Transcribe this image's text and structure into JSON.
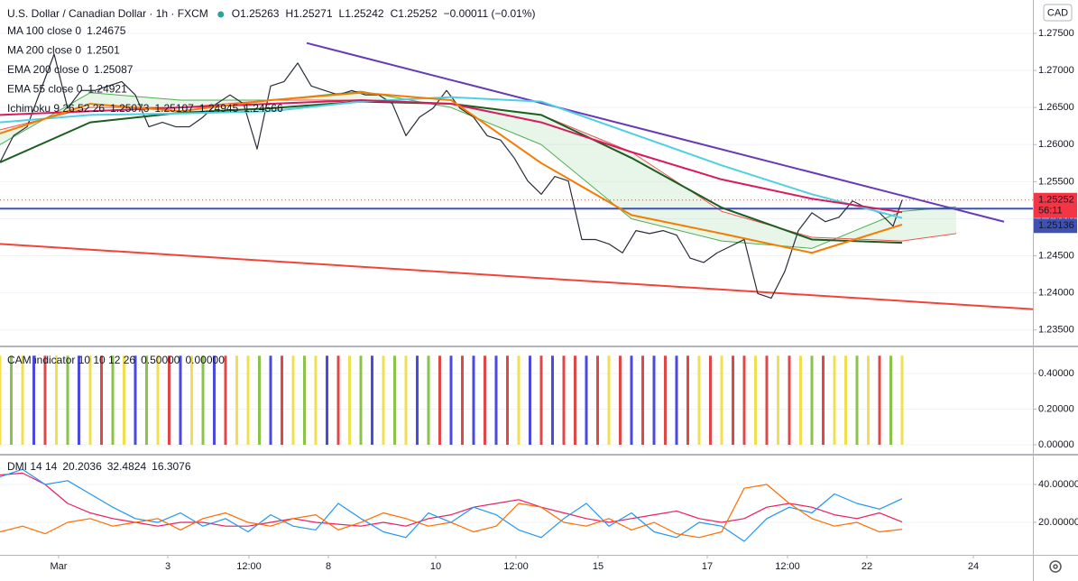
{
  "chart_data": [
    {
      "type": "line",
      "title": "U.S. Dollar / Canadian Dollar · 1h · FXCM",
      "quote": [
        "O1.25263",
        "H1.25271",
        "L1.25242",
        "C1.25252",
        "−0.00011 (−0.01%)"
      ],
      "currency": "CAD",
      "countdown": "56:11",
      "last_price": 1.25252,
      "hline": 1.25136,
      "xlim": [
        0,
        458
      ],
      "ylim": [
        1.2329,
        1.2795
      ],
      "yticks": [
        {
          "value": 1.235,
          "label": "1.23500"
        },
        {
          "value": 1.24,
          "label": "1.24000"
        },
        {
          "value": 1.245,
          "label": "1.24500"
        },
        {
          "value": 1.25,
          "label": "1.25000"
        },
        {
          "value": 1.255,
          "label": "1.25500"
        },
        {
          "value": 1.26,
          "label": "1.26000"
        },
        {
          "value": 1.265,
          "label": "1.26500"
        },
        {
          "value": 1.27,
          "label": "1.27000"
        },
        {
          "value": 1.275,
          "label": "1.27500"
        }
      ],
      "grid": true,
      "x": [
        0,
        6,
        12,
        18,
        24,
        30,
        36,
        42,
        48,
        54,
        60,
        66,
        72,
        78,
        84,
        90,
        96,
        102,
        108,
        114,
        120,
        126,
        132,
        138,
        144,
        150,
        156,
        162,
        168,
        174,
        180,
        186,
        192,
        198,
        204,
        210,
        216,
        222,
        228,
        234,
        240,
        246,
        252,
        258,
        264,
        270,
        276,
        282,
        288,
        294,
        300,
        306,
        312,
        318,
        324,
        330,
        336,
        342,
        348,
        354,
        360,
        366,
        372,
        378,
        384,
        390,
        396,
        400
      ],
      "ichimoku": {
        "name": "Ichimoku 9 26 52 26",
        "legend_values": [
          1.25073,
          1.25107,
          1.24945,
          1.24566
        ],
        "x": [
          0,
          40,
          80,
          120,
          160,
          200,
          240,
          280,
          320,
          360,
          400,
          424
        ],
        "span_a": {
          "color": "#4caf50",
          "values": [
            1.26,
            1.267,
            1.266,
            1.266,
            1.2672,
            1.265,
            1.26,
            1.25,
            1.247,
            1.246,
            1.251,
            1.2516
          ]
        },
        "span_b": {
          "color": "#ef5350",
          "values": [
            1.262,
            1.265,
            1.265,
            1.266,
            1.266,
            1.2655,
            1.264,
            1.259,
            1.251,
            1.2475,
            1.247,
            1.248
          ]
        }
      },
      "trendlines": [
        {
          "color": "#673ab7",
          "x": [
            136,
            445.2
          ],
          "values": [
            1.2737,
            1.2496
          ]
        },
        {
          "color": "#f44336",
          "x": [
            0,
            458
          ],
          "values": [
            1.2466,
            1.2378
          ]
        }
      ],
      "series": [
        {
          "color": "#2a2e39",
          "values": [
            1.2576,
            1.2612,
            1.2624,
            1.2673,
            1.2722,
            1.2649,
            1.2673,
            1.2673,
            1.2679,
            1.2685,
            1.2667,
            1.2624,
            1.263,
            1.2624,
            1.2624,
            1.2637,
            1.2655,
            1.2667,
            1.2655,
            1.2594,
            1.2679,
            1.2685,
            1.271,
            1.2679,
            1.2673,
            1.2667,
            1.2673,
            1.2667,
            1.2667,
            1.2655,
            1.2612,
            1.2637,
            1.2649,
            1.2673,
            1.2649,
            1.2637,
            1.2612,
            1.2606,
            1.2582,
            1.2551,
            1.2533,
            1.2557,
            1.2551,
            1.2472,
            1.2472,
            1.2466,
            1.2454,
            1.2484,
            1.248,
            1.2484,
            1.2478,
            1.2447,
            1.2441,
            1.2454,
            1.2463,
            1.2472,
            1.2399,
            1.2393,
            1.2429,
            1.2484,
            1.2508,
            1.2496,
            1.2502,
            1.2524,
            1.2515,
            1.2508,
            1.249,
            1.25252
          ]
        },
        {
          "name": "MA 100 close 0",
          "color": "#1b5e20",
          "x": [
            0,
            40,
            80,
            120,
            160,
            200,
            240,
            280,
            320,
            360,
            400
          ],
          "values": [
            1.2576,
            1.263,
            1.2643,
            1.2649,
            1.2658,
            1.2655,
            1.264,
            1.2582,
            1.2515,
            1.2472,
            1.24675
          ]
        },
        {
          "name": "MA 200 close 0",
          "color": "#4dd0e1",
          "x": [
            0,
            40,
            80,
            120,
            160,
            200,
            240,
            280,
            320,
            360,
            400
          ],
          "values": [
            1.263,
            1.264,
            1.2642,
            1.2645,
            1.2658,
            1.2664,
            1.2658,
            1.2615,
            1.2572,
            1.2533,
            1.2501
          ]
        },
        {
          "name": "EMA 200 close 0",
          "color": "#d81b60",
          "x": [
            0,
            40,
            80,
            120,
            160,
            200,
            240,
            280,
            320,
            360,
            400
          ],
          "values": [
            1.264,
            1.2645,
            1.265,
            1.2655,
            1.266,
            1.2655,
            1.263,
            1.259,
            1.2553,
            1.2527,
            1.25087
          ]
        },
        {
          "name": "EMA 55 close 0",
          "color": "#f57c00",
          "x": [
            0,
            40,
            80,
            120,
            160,
            200,
            240,
            280,
            320,
            360,
            400
          ],
          "values": [
            1.2615,
            1.2655,
            1.2645,
            1.266,
            1.267,
            1.266,
            1.2575,
            1.2505,
            1.248,
            1.2454,
            1.24921
          ]
        }
      ]
    },
    {
      "type": "bar",
      "name": "CAM indicator 10 10 12 26",
      "legend_values": [
        "0.50000",
        "0.00000"
      ],
      "legend_colors": [
        "#558b2f",
        "#2962ff"
      ],
      "xlim": [
        0,
        458
      ],
      "ylim": [
        -0.0506,
        0.547
      ],
      "yticks": [
        {
          "value": 0,
          "label": "0.00000"
        },
        {
          "value": 0.2,
          "label": "0.20000"
        },
        {
          "value": 0.4,
          "label": "0.40000"
        }
      ],
      "x": [
        0,
        5,
        10,
        15,
        20,
        25,
        30,
        35,
        40,
        45,
        50,
        55,
        60,
        65,
        70,
        75,
        80,
        85,
        90,
        95,
        100,
        105,
        110,
        115,
        120,
        125,
        130,
        135,
        140,
        145,
        150,
        155,
        160,
        165,
        170,
        175,
        180,
        185,
        190,
        195,
        200,
        205,
        210,
        215,
        220,
        225,
        230,
        235,
        240,
        245,
        250,
        255,
        260,
        265,
        270,
        275,
        280,
        285,
        290,
        295,
        300,
        305,
        310,
        315,
        320,
        325,
        330,
        335,
        340,
        345,
        350,
        355,
        360,
        365,
        370,
        375,
        380,
        385,
        390,
        395,
        400
      ],
      "values": [
        0.5,
        0.5,
        0.5,
        0.5,
        0.5,
        0.5,
        0.5,
        0.5,
        0.5,
        0.5,
        0.5,
        0.5,
        0.5,
        0.5,
        0.5,
        0.5,
        0.5,
        0.5,
        0.5,
        0.5,
        0.5,
        0.5,
        0.5,
        0.5,
        0.5,
        0.5,
        0.5,
        0.5,
        0.5,
        0.5,
        0.5,
        0.5,
        0.5,
        0.5,
        0.5,
        0.5,
        0.5,
        0.5,
        0.5,
        0.5,
        0.5,
        0.5,
        0.5,
        0.5,
        0.5,
        0.5,
        0.5,
        0.5,
        0.5,
        0.5,
        0.5,
        0.5,
        0.5,
        0.5,
        0.5,
        0.5,
        0.5,
        0.5,
        0.5,
        0.5,
        0.5,
        0.5,
        0.5,
        0.5,
        0.5,
        0.5,
        0.5,
        0.5,
        0.5,
        0.5,
        0.5,
        0.5,
        0.5,
        0.5,
        0.5,
        0.5,
        0.5,
        0.5,
        0.5,
        0.5,
        0.5
      ],
      "colors": [
        "#f0e050",
        "#8bc34a",
        "#f0e050",
        "#4a4ae0",
        "#e04848",
        "#f0e050",
        "#8bc34a",
        "#4a4ae0",
        "#f0e050",
        "#e04848",
        "#8bc34a",
        "#f0e050",
        "#4a4ae0",
        "#8bc34a",
        "#f0e050",
        "#e04848",
        "#4a4ae0",
        "#f0e050",
        "#8bc34a",
        "#4a4ae0",
        "#e04848",
        "#f0e050",
        "#f0e050",
        "#8bc34a",
        "#4a4ae0",
        "#e04848",
        "#f0e050",
        "#8bc34a",
        "#f0e050",
        "#4a4ae0",
        "#e04848",
        "#f0e050",
        "#8bc34a",
        "#4a4ae0",
        "#f0e050",
        "#8bc34a",
        "#f0e050",
        "#4a4ae0",
        "#8bc34a",
        "#e04848",
        "#4a4ae0",
        "#e04848",
        "#4a4ae0",
        "#e04848",
        "#4a4ae0",
        "#e04848",
        "#f0e050",
        "#4a4ae0",
        "#e04848",
        "#4a4ae0",
        "#e04848",
        "#e04848",
        "#4a4ae0",
        "#e04848",
        "#f0e050",
        "#e04848",
        "#4a4ae0",
        "#e04848",
        "#4a4ae0",
        "#e04848",
        "#4a4ae0",
        "#e04848",
        "#f0e050",
        "#e04848",
        "#f0e050",
        "#e04848",
        "#e04848",
        "#f0e050",
        "#e04848",
        "#f0e050",
        "#e04848",
        "#f0e050",
        "#8bc34a",
        "#e04848",
        "#f0e050",
        "#f0e050",
        "#8bc34a",
        "#f0e050",
        "#e04848",
        "#8bc34a",
        "#f0e050"
      ]
    },
    {
      "type": "line",
      "name": "DMI 14 14",
      "xlim": [
        0,
        458
      ],
      "ylim": [
        2.86,
        55.24
      ],
      "yticks": [
        {
          "value": 20,
          "label": "20.00000"
        },
        {
          "value": 40,
          "label": "40.00000"
        }
      ],
      "xticks": [
        {
          "value": 26,
          "label": "Mar"
        },
        {
          "value": 74.4,
          "label": "3"
        },
        {
          "value": 110.4,
          "label": "12:00"
        },
        {
          "value": 145.6,
          "label": "8"
        },
        {
          "value": 193.2,
          "label": "10"
        },
        {
          "value": 228.8,
          "label": "12:00"
        },
        {
          "value": 265.2,
          "label": "15"
        },
        {
          "value": 313.6,
          "label": "17"
        },
        {
          "value": 349.2,
          "label": "12:00"
        },
        {
          "value": 384.4,
          "label": "22"
        },
        {
          "value": 431.6,
          "label": "24"
        }
      ],
      "x": [
        0,
        10,
        20,
        30,
        40,
        50,
        60,
        70,
        80,
        90,
        100,
        110,
        120,
        130,
        140,
        150,
        160,
        170,
        180,
        190,
        200,
        210,
        220,
        230,
        240,
        250,
        260,
        270,
        280,
        290,
        300,
        310,
        320,
        330,
        340,
        350,
        360,
        370,
        380,
        390,
        400
      ],
      "series": [
        {
          "color": "#e91e63",
          "values": [
            45,
            46,
            40,
            30,
            25,
            22,
            20,
            18,
            20,
            20,
            18,
            18,
            20,
            22,
            20,
            19,
            18,
            20,
            18,
            22,
            24,
            28,
            30,
            32,
            28,
            25,
            22,
            20,
            22,
            24,
            26,
            22,
            20,
            22,
            28,
            30,
            28,
            24,
            22,
            25,
            20.2036
          ]
        },
        {
          "color": "#2196f3",
          "values": [
            44,
            48,
            40,
            42,
            35,
            28,
            22,
            20,
            25,
            18,
            22,
            15,
            24,
            18,
            16,
            30,
            22,
            15,
            12,
            25,
            20,
            28,
            24,
            16,
            12,
            22,
            30,
            18,
            25,
            15,
            12,
            20,
            18,
            10,
            22,
            28,
            25,
            35,
            30,
            27,
            32.4824
          ]
        },
        {
          "color": "#ff6d00",
          "values": [
            15,
            18,
            14,
            20,
            22,
            18,
            20,
            22,
            16,
            22,
            25,
            20,
            18,
            22,
            24,
            16,
            20,
            25,
            22,
            18,
            20,
            15,
            18,
            30,
            28,
            20,
            18,
            22,
            16,
            20,
            14,
            12,
            15,
            38,
            40,
            30,
            22,
            18,
            20,
            15,
            16.3076
          ]
        }
      ]
    }
  ]
}
